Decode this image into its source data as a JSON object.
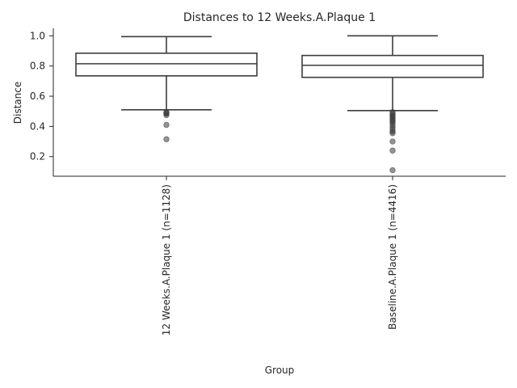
{
  "chart_data": {
    "type": "box",
    "title": "Distances to 12 Weeks.A.Plaque 1",
    "xlabel": "Group",
    "ylabel": "Distance",
    "ylim": [
      0.07,
      1.05
    ],
    "yticks": [
      0.2,
      0.4,
      0.6,
      0.8,
      1.0
    ],
    "ytick_labels": [
      "0.2",
      "0.4",
      "0.6",
      "0.8",
      "1.0"
    ],
    "grid": false,
    "categories": [
      "12 Weeks.A.Plaque 1 (n=1128)",
      "Baseline.A.Plaque 1 (n=4416)"
    ],
    "boxes": [
      {
        "label": "12 Weeks.A.Plaque 1 (n=1128)",
        "whisker_low": 0.51,
        "q1": 0.735,
        "median": 0.815,
        "q3": 0.885,
        "whisker_high": 0.995,
        "outliers": [
          0.495,
          0.49,
          0.485,
          0.475,
          0.41,
          0.315
        ]
      },
      {
        "label": "Baseline.A.Plaque 1 (n=4416)",
        "whisker_low": 0.505,
        "q1": 0.725,
        "median": 0.805,
        "q3": 0.87,
        "whisker_high": 1.0,
        "outliers": [
          0.495,
          0.485,
          0.475,
          0.465,
          0.455,
          0.445,
          0.435,
          0.425,
          0.41,
          0.395,
          0.38,
          0.365,
          0.355,
          0.3,
          0.24,
          0.11
        ]
      }
    ]
  }
}
